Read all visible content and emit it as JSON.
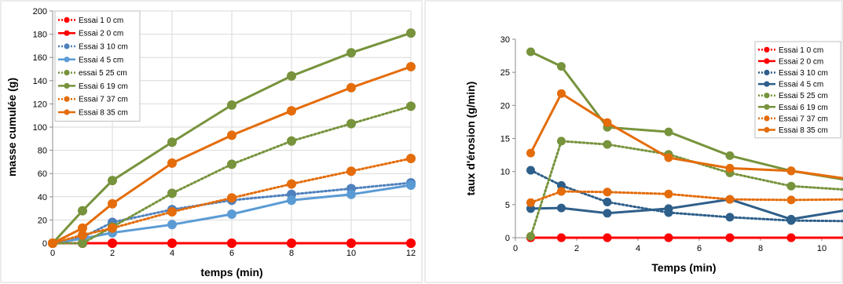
{
  "chart_data": [
    {
      "type": "line",
      "xlabel": "temps (min)",
      "ylabel": "masse cumulée (g)",
      "xlim": [
        0,
        12
      ],
      "ylim": [
        0,
        200
      ],
      "xticks": [
        "0",
        "2",
        "4",
        "6",
        "8",
        "10",
        "12"
      ],
      "yticks": [
        "0",
        "20",
        "40",
        "60",
        "80",
        "100",
        "120",
        "140",
        "160",
        "180",
        "200"
      ],
      "grid": true,
      "legend_position": "top-left",
      "series": [
        {
          "name": "Essai 1 0 cm",
          "color": "#ff0000",
          "style": "dotted",
          "x": [
            0,
            1,
            2,
            4,
            6,
            8,
            10,
            12
          ],
          "y": [
            0,
            0,
            0,
            0,
            0,
            0,
            0,
            0
          ]
        },
        {
          "name": "Essai 2 0 cm",
          "color": "#ff0000",
          "style": "solid",
          "x": [
            0,
            1,
            2,
            4,
            6,
            8,
            10,
            12
          ],
          "y": [
            0,
            0,
            0,
            0,
            0,
            0,
            0,
            0
          ]
        },
        {
          "name": "Essai 3 10 cm",
          "color": "#4f81bd",
          "style": "dotted",
          "x": [
            0,
            1,
            2,
            4,
            6,
            8,
            10,
            12
          ],
          "y": [
            0,
            5,
            18,
            29,
            37,
            42,
            47,
            52
          ]
        },
        {
          "name": "Essai 4 5 cm",
          "color": "#5b9bd5",
          "style": "solid",
          "x": [
            0,
            1,
            2,
            4,
            6,
            8,
            10,
            12
          ],
          "y": [
            0,
            4,
            9,
            16,
            25,
            37,
            42,
            50
          ]
        },
        {
          "name": "essai 5 25 cm",
          "color": "#77933c",
          "style": "dotted",
          "x": [
            0,
            1,
            2,
            4,
            6,
            8,
            10,
            12
          ],
          "y": [
            0,
            0,
            14,
            43,
            68,
            88,
            103,
            118
          ]
        },
        {
          "name": "Essai 6 19 cm",
          "color": "#77933c",
          "style": "solid",
          "x": [
            0,
            1,
            2,
            4,
            6,
            8,
            10,
            12
          ],
          "y": [
            0,
            28,
            54,
            87,
            119,
            144,
            164,
            181
          ]
        },
        {
          "name": "Essai 7 37 cm",
          "color": "#e46c0a",
          "style": "dotted",
          "x": [
            0,
            1,
            2,
            4,
            6,
            8,
            10,
            12
          ],
          "y": [
            0,
            7,
            13,
            27,
            39,
            51,
            62,
            73
          ]
        },
        {
          "name": "Essai 8 35 cm",
          "color": "#e46c0a",
          "style": "solid",
          "x": [
            0,
            1,
            2,
            4,
            6,
            8,
            10,
            12
          ],
          "y": [
            0,
            13,
            34,
            69,
            93,
            114,
            134,
            152
          ]
        }
      ]
    },
    {
      "type": "line",
      "xlabel": "Temps (min)",
      "ylabel": "taux d'érosion (g/min)",
      "xlim": [
        0,
        11
      ],
      "ylim": [
        0,
        30
      ],
      "xticks": [
        "0",
        "2",
        "4",
        "6",
        "8",
        "10"
      ],
      "yticks": [
        "0",
        "5",
        "10",
        "15",
        "20",
        "25",
        "30"
      ],
      "grid": false,
      "legend_position": "top-right",
      "series": [
        {
          "name": "Essai 1 0 cm",
          "color": "#ff0000",
          "style": "dotted",
          "x": [
            0.5,
            1.5,
            3,
            5,
            7,
            9,
            11
          ],
          "y": [
            0,
            0,
            0,
            0,
            0,
            0,
            0
          ]
        },
        {
          "name": "Essai 2 0 cm",
          "color": "#ff0000",
          "style": "solid",
          "x": [
            0.5,
            1.5,
            3,
            5,
            7,
            9,
            11
          ],
          "y": [
            0,
            0,
            0,
            0,
            0,
            0,
            0
          ]
        },
        {
          "name": "Essai 3 10 cm",
          "color": "#2e5f8a",
          "style": "dotted",
          "x": [
            0.5,
            1.5,
            3,
            5,
            7,
            9,
            11
          ],
          "y": [
            10.2,
            7.9,
            5.4,
            3.8,
            3.1,
            2.6,
            2.5
          ]
        },
        {
          "name": "Essai 4 5 cm",
          "color": "#2e5f8a",
          "style": "solid",
          "x": [
            0.5,
            1.5,
            3,
            5,
            7,
            9,
            11
          ],
          "y": [
            4.4,
            4.5,
            3.7,
            4.4,
            5.8,
            2.8,
            4.3
          ]
        },
        {
          "name": "Essai 5 25 cm",
          "color": "#77933c",
          "style": "dotted",
          "x": [
            0.5,
            1.5,
            3,
            5,
            7,
            9,
            11
          ],
          "y": [
            0.2,
            14.6,
            14.1,
            12.6,
            9.8,
            7.8,
            7.2
          ]
        },
        {
          "name": "Essai 6 19 cm",
          "color": "#77933c",
          "style": "solid",
          "x": [
            0.5,
            1.5,
            3,
            5,
            7,
            9,
            11
          ],
          "y": [
            28.1,
            25.9,
            16.7,
            16.0,
            12.4,
            10.1,
            8.6
          ]
        },
        {
          "name": "Essai 7 37 cm",
          "color": "#e46c0a",
          "style": "dotted",
          "x": [
            0.5,
            1.5,
            3,
            5,
            7,
            9,
            11
          ],
          "y": [
            5.3,
            7.0,
            6.9,
            6.6,
            5.8,
            5.7,
            5.8
          ]
        },
        {
          "name": "Essai 8 35 cm",
          "color": "#e46c0a",
          "style": "solid",
          "x": [
            0.5,
            1.5,
            3,
            5,
            7,
            9,
            11
          ],
          "y": [
            12.8,
            21.8,
            17.4,
            12.1,
            10.5,
            10.1,
            8.8
          ]
        }
      ]
    }
  ]
}
